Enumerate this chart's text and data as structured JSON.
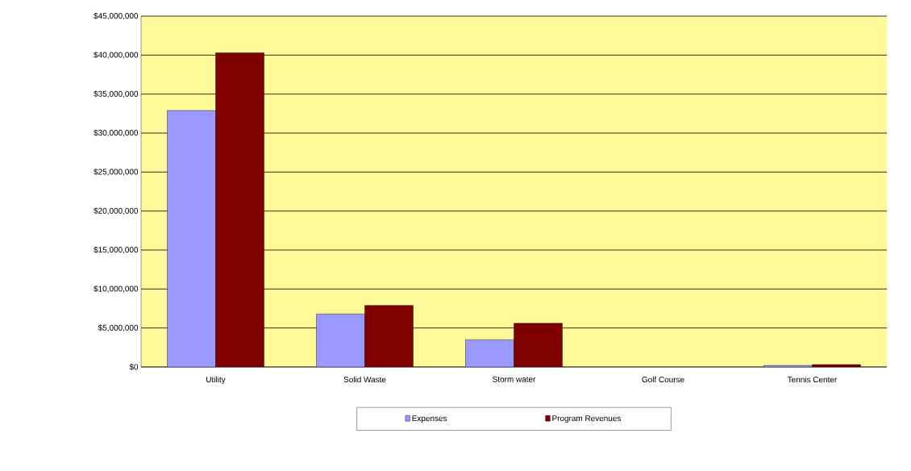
{
  "chart_data": {
    "type": "bar",
    "categories": [
      "Utility",
      "Solid Waste",
      "Storm water",
      "Golf Course",
      "Tennis Center"
    ],
    "series": [
      {
        "name": "Expenses",
        "color": "#9999ff",
        "values": [
          32900000,
          6800000,
          3500000,
          null,
          200000
        ]
      },
      {
        "name": "Program Revenues",
        "color": "#800000",
        "values": [
          40300000,
          7900000,
          5600000,
          null,
          300000
        ]
      }
    ],
    "ylim": [
      0,
      45000000
    ],
    "yticks": [
      {
        "value": 0,
        "label": "$0"
      },
      {
        "value": 5000000,
        "label": "$5,000,000"
      },
      {
        "value": 10000000,
        "label": "$10,000,000"
      },
      {
        "value": 15000000,
        "label": "$15,000,000"
      },
      {
        "value": 20000000,
        "label": "$20,000,000"
      },
      {
        "value": 25000000,
        "label": "$25,000,000"
      },
      {
        "value": 30000000,
        "label": "$30,000,000"
      },
      {
        "value": 35000000,
        "label": "$35,000,000"
      },
      {
        "value": 40000000,
        "label": "$40,000,000"
      },
      {
        "value": 45000000,
        "label": "$45,000,000"
      }
    ],
    "grid": "y",
    "legend": "bottom"
  }
}
